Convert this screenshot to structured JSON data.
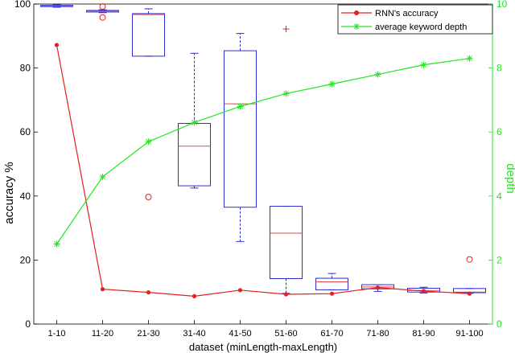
{
  "chart_data": {
    "type": "box-line",
    "categories": [
      "1-10",
      "11-20",
      "21-30",
      "31-40",
      "41-50",
      "51-60",
      "61-70",
      "71-80",
      "81-90",
      "91-100"
    ],
    "xlabel": "dataset (minLength-maxLength)",
    "ylabel_left": "accuracy  %",
    "ylabel_right": "depth",
    "ylim_left": [
      0,
      100
    ],
    "ylim_right": [
      0,
      10
    ],
    "yticks_left": [
      "0",
      "20",
      "40",
      "60",
      "80",
      "100"
    ],
    "yticks_right": [
      "0",
      "2",
      "4",
      "6",
      "8",
      "10"
    ],
    "colors": {
      "box": "#2b2bd6",
      "median": "#e8474a",
      "accuracy": "#e81e1e",
      "depth": "#22e622",
      "outlier": "#e81e1e"
    },
    "boxes": [
      {
        "q1": 99.2,
        "median": 99.4,
        "q3": 99.6,
        "whisker_low": 99.0,
        "whisker_high": 99.8,
        "outliers": []
      },
      {
        "q1": 97.5,
        "median": 97.8,
        "q3": 98.0,
        "whisker_low": 97.3,
        "whisker_high": 98.2,
        "outliers": [
          {
            "y": 99.2,
            "marker": "o"
          },
          {
            "y": 95.8,
            "marker": "o"
          }
        ]
      },
      {
        "q1": 83.7,
        "median": 96.7,
        "q3": 97.0,
        "whisker_low": 83.7,
        "whisker_high": 98.5,
        "outliers": [
          {
            "y": 39.7,
            "marker": "o"
          }
        ]
      },
      {
        "q1": 43.2,
        "median": 55.6,
        "q3": 62.7,
        "whisker_low": 42.5,
        "whisker_high": 84.6,
        "outliers": []
      },
      {
        "q1": 36.5,
        "median": 68.8,
        "q3": 85.4,
        "whisker_low": 25.8,
        "whisker_high": 90.8,
        "outliers": []
      },
      {
        "q1": 14.2,
        "median": 28.4,
        "q3": 36.8,
        "whisker_low": 9.6,
        "whisker_high": 36.8,
        "outliers": [
          {
            "y": 92.2,
            "marker": "+"
          }
        ]
      },
      {
        "q1": 10.7,
        "median": 13.2,
        "q3": 14.3,
        "whisker_low": 10.7,
        "whisker_high": 15.8,
        "outliers": []
      },
      {
        "q1": 11.0,
        "median": 11.6,
        "q3": 12.3,
        "whisker_low": 10.2,
        "whisker_high": 12.3,
        "outliers": []
      },
      {
        "q1": 10.0,
        "median": 10.5,
        "q3": 11.2,
        "whisker_low": 9.7,
        "whisker_high": 11.5,
        "outliers": []
      },
      {
        "q1": 9.8,
        "median": 10.0,
        "q3": 11.1,
        "whisker_low": 9.6,
        "whisker_high": 11.1,
        "outliers": [
          {
            "y": 20.2,
            "marker": "o"
          }
        ]
      }
    ],
    "series": [
      {
        "name": "RNN's accuracy",
        "axis": "left",
        "marker": "filled-circle",
        "values": [
          87.2,
          10.9,
          9.9,
          8.7,
          10.6,
          9.3,
          9.5,
          11.4,
          10.3,
          9.5
        ]
      },
      {
        "name": "average keyword depth",
        "axis": "right",
        "marker": "asterisk",
        "values": [
          2.5,
          4.6,
          5.7,
          6.3,
          6.8,
          7.2,
          7.5,
          7.8,
          8.1,
          8.3
        ]
      }
    ],
    "legend": "top-right",
    "grid": false
  }
}
